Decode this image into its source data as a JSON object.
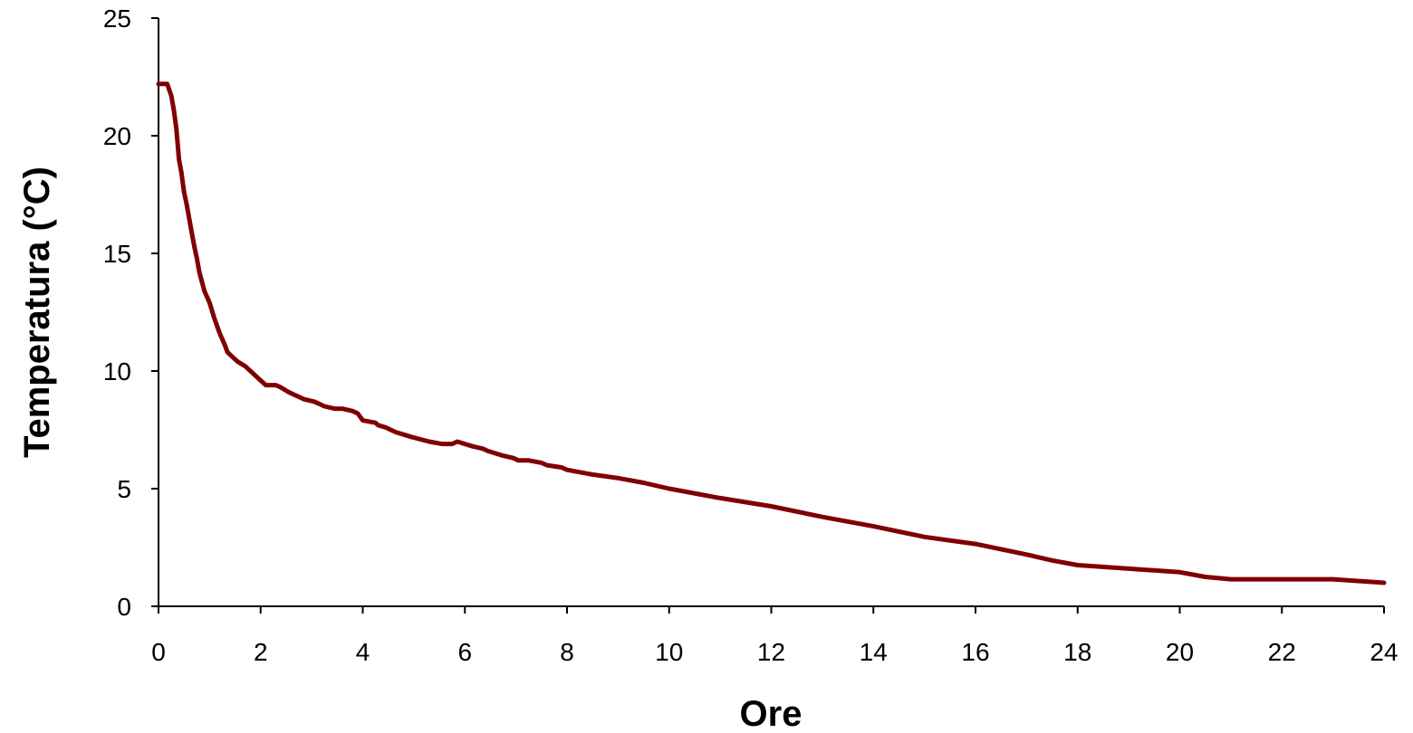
{
  "chart_data": {
    "type": "line",
    "xlabel": "Ore",
    "ylabel": "Temperatura (°C)",
    "xlim": [
      0,
      24
    ],
    "ylim": [
      0,
      25
    ],
    "x_ticks": [
      "0",
      "2",
      "4",
      "6",
      "8",
      "10",
      "12",
      "14",
      "16",
      "18",
      "20",
      "22",
      "24"
    ],
    "y_ticks": [
      "0",
      "5",
      "10",
      "15",
      "20",
      "25"
    ],
    "grid": false,
    "legend": "none",
    "series_color": "#800000",
    "series": [
      {
        "x": [
          0.0,
          0.17,
          0.25,
          0.3,
          0.35,
          0.4,
          0.45,
          0.5,
          0.55,
          0.6,
          0.65,
          0.7,
          0.75,
          0.8,
          0.85,
          0.9,
          1.0,
          1.1,
          1.2,
          1.3,
          1.35,
          1.45,
          1.55,
          1.7,
          1.8,
          1.95,
          2.05,
          2.1,
          2.3,
          2.4,
          2.55,
          2.65,
          2.85,
          3.05,
          3.15,
          3.25,
          3.45,
          3.6,
          3.8,
          3.9,
          4.0,
          4.25,
          4.3,
          4.45,
          4.65,
          4.8,
          4.95,
          5.3,
          5.55,
          5.75,
          5.85,
          6.0,
          6.15,
          6.35,
          6.45,
          6.6,
          6.75,
          6.95,
          7.05,
          7.25,
          7.5,
          7.6,
          7.9,
          8.0,
          8.5,
          9.0,
          9.5,
          10.0,
          11.0,
          12.0,
          13.0,
          14.0,
          15.0,
          16.0,
          17.0,
          17.5,
          18.0,
          19.0,
          20.0,
          20.5,
          21.0,
          22.0,
          23.0,
          24.0
        ],
        "y": [
          22.2,
          22.2,
          21.7,
          21.1,
          20.3,
          19.0,
          18.4,
          17.6,
          17.1,
          16.5,
          15.9,
          15.3,
          14.8,
          14.2,
          13.8,
          13.4,
          12.9,
          12.2,
          11.6,
          11.1,
          10.8,
          10.6,
          10.4,
          10.2,
          10.0,
          9.7,
          9.5,
          9.4,
          9.4,
          9.3,
          9.1,
          9.0,
          8.8,
          8.7,
          8.6,
          8.5,
          8.4,
          8.4,
          8.3,
          8.2,
          7.9,
          7.8,
          7.7,
          7.6,
          7.4,
          7.3,
          7.2,
          7.0,
          6.9,
          6.9,
          7.0,
          6.9,
          6.8,
          6.7,
          6.6,
          6.5,
          6.4,
          6.3,
          6.2,
          6.2,
          6.1,
          6.0,
          5.9,
          5.8,
          5.6,
          5.45,
          5.25,
          5.0,
          4.6,
          4.25,
          3.8,
          3.4,
          2.95,
          2.65,
          2.2,
          1.95,
          1.75,
          1.6,
          1.45,
          1.25,
          1.15,
          1.15,
          1.15,
          1.0
        ]
      }
    ]
  }
}
